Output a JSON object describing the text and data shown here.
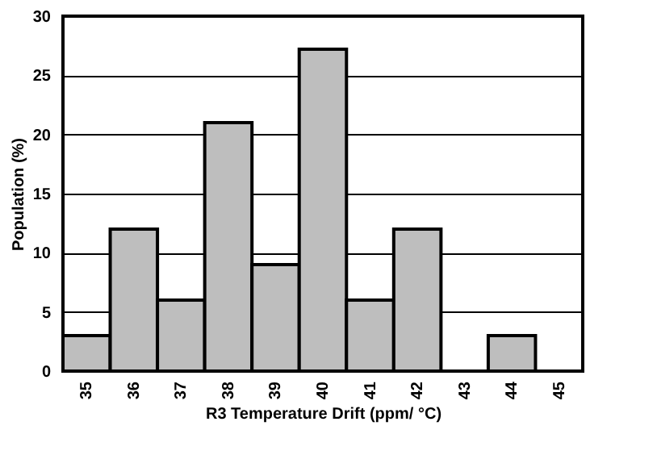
{
  "chart_data": {
    "type": "bar",
    "xlabel": "R3 Temperature Drift (ppm/ °C)",
    "ylabel": "Population  (%)",
    "categories": [
      "35",
      "36",
      "37",
      "38",
      "39",
      "40",
      "41",
      "42",
      "43",
      "44",
      "45"
    ],
    "values": [
      3,
      12,
      6,
      21,
      9,
      27.2,
      6,
      12,
      0,
      3,
      0
    ],
    "color": "#bebebe",
    "ylim": [
      0,
      30
    ],
    "yticks": [
      0,
      5,
      10,
      15,
      20,
      25,
      30
    ],
    "grid": "y"
  }
}
